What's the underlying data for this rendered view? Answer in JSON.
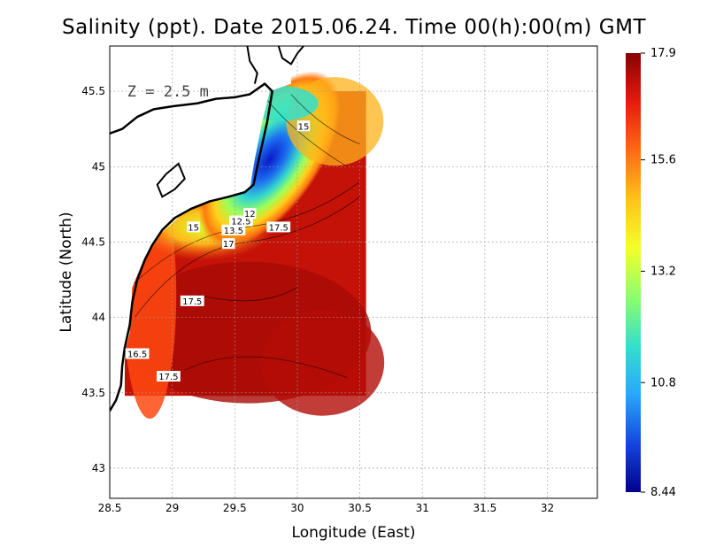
{
  "title": "Salinity (ppt). Date 2015.06.24. Time 00(h):00(m) GMT",
  "chart_data": {
    "type": "heatmap",
    "title": "Salinity (ppt). Date 2015.06.24. Time 00(h):00(m) GMT",
    "annotation": "Z = 2.5 m",
    "xlabel": "Longitude (East)",
    "ylabel": "Latitude (North)",
    "xlim": [
      28.5,
      32.4
    ],
    "ylim": [
      42.8,
      45.8
    ],
    "xticks": [
      "28.5",
      "29",
      "29.5",
      "30",
      "30.5",
      "31",
      "31.5",
      "32"
    ],
    "yticks": [
      "43",
      "43.5",
      "44",
      "44.5",
      "45",
      "45.5"
    ],
    "grid": true,
    "colorbar": {
      "min": 8.44,
      "max": 17.9,
      "ticks": [
        "17.9",
        "15.6",
        "13.2",
        "10.8",
        "8.44"
      ],
      "colors": [
        "#8b0000",
        "#e51b0e",
        "#ff6a12",
        "#ffc21a",
        "#f4ff2a",
        "#8cff6a",
        "#33e0cc",
        "#26a8ff",
        "#1446e0",
        "#00008f"
      ]
    },
    "data_extent": {
      "lon": [
        28.62,
        30.55
      ],
      "lat": [
        43.48,
        45.5
      ]
    },
    "contour_labels": [
      {
        "text": "15",
        "lon": 30.05,
        "lat": 45.27
      },
      {
        "text": "15",
        "lon": 29.17,
        "lat": 44.6
      },
      {
        "text": "17.5",
        "lon": 29.85,
        "lat": 44.6
      },
      {
        "text": "17.5",
        "lon": 29.16,
        "lat": 44.11
      },
      {
        "text": "16.5",
        "lon": 28.72,
        "lat": 43.76
      },
      {
        "text": "17.5",
        "lon": 28.97,
        "lat": 43.61
      },
      {
        "text": "12.5",
        "lon": 29.55,
        "lat": 44.64
      },
      {
        "text": "12",
        "lon": 29.62,
        "lat": 44.69
      },
      {
        "text": "13.5",
        "lon": 29.49,
        "lat": 44.58
      },
      {
        "text": "17",
        "lon": 29.45,
        "lat": 44.49
      }
    ]
  }
}
